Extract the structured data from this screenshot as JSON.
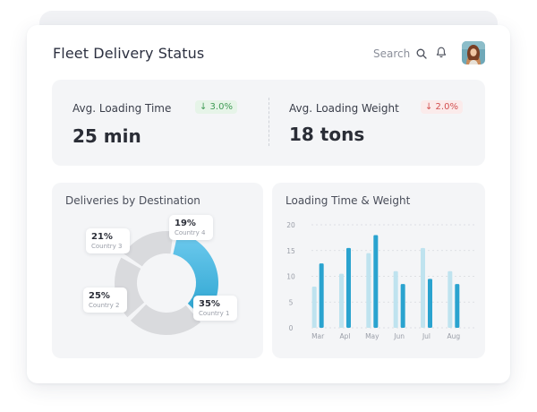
{
  "header": {
    "title": "Fleet Delivery Status",
    "search_label": "Search"
  },
  "stats": [
    {
      "label": "Avg. Loading Time",
      "change": "↓ 3.0%",
      "trend": "positive",
      "value": "25 min"
    },
    {
      "label": "Avg. Loading Weight",
      "change": "↓ 2.0%",
      "trend": "negative",
      "value": "18 tons"
    }
  ],
  "colors": {
    "accent_blue": "#2aa3cf",
    "light_blue": "#bfe3ef",
    "donut_gray": "#d9dadd",
    "positive": "#3f9a55",
    "negative": "#d25050"
  },
  "donut": {
    "title": "Deliveries by Destination",
    "segments": [
      {
        "pct": "35%",
        "name": "Country 1",
        "value": 35,
        "color": "#2aa3cf"
      },
      {
        "pct": "25%",
        "name": "Country 2",
        "value": 25,
        "color": "#d9dadd"
      },
      {
        "pct": "21%",
        "name": "Country 3",
        "value": 21,
        "color": "#d9dadd"
      },
      {
        "pct": "19%",
        "name": "Country 4",
        "value": 19,
        "color": "#d9dadd"
      }
    ]
  },
  "chart_data": {
    "type": "bar",
    "title": "Loading Time & Weight",
    "categories": [
      "Mar",
      "Apl",
      "May",
      "Jun",
      "Jul",
      "Aug"
    ],
    "y_ticks": [
      "0",
      "5",
      "10",
      "15",
      "20"
    ],
    "ylim": [
      0,
      20
    ],
    "grid": true,
    "series": [
      {
        "values": [
          8,
          10.5,
          14.5,
          11,
          15.5,
          11
        ],
        "color": "#bfe3ef"
      },
      {
        "values": [
          12.5,
          15.5,
          18,
          8.5,
          9.5,
          8.5
        ],
        "color": "#2aa3cf"
      }
    ]
  }
}
